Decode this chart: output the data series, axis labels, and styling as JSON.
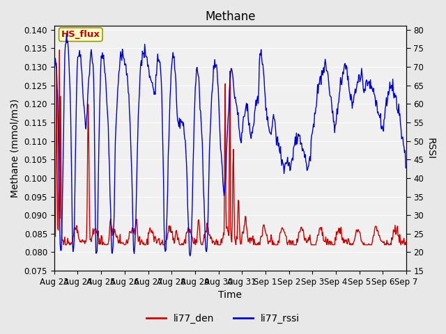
{
  "title": "Methane",
  "ylabel_left": "Methane (mmol/m3)",
  "ylabel_right": "RSSI",
  "xlabel": "Time",
  "ylim_left": [
    0.075,
    0.141
  ],
  "ylim_right": [
    15,
    81
  ],
  "yticks_left": [
    0.075,
    0.08,
    0.085,
    0.09,
    0.095,
    0.1,
    0.105,
    0.11,
    0.115,
    0.12,
    0.125,
    0.13,
    0.135,
    0.14
  ],
  "yticks_right": [
    15,
    20,
    25,
    30,
    35,
    40,
    45,
    50,
    55,
    60,
    65,
    70,
    75,
    80
  ],
  "xtick_labels": [
    "Aug 23",
    "Aug 24",
    "Aug 25",
    "Aug 26",
    "Aug 27",
    "Aug 28",
    "Aug 29",
    "Aug 30",
    "Aug 31",
    "Sep 1",
    "Sep 2",
    "Sep 3",
    "Sep 4",
    "Sep 5",
    "Sep 6",
    "Sep 7"
  ],
  "color_den": "#cc0000",
  "color_rssi": "#0000cc",
  "legend_label_den": "li77_den",
  "legend_label_rssi": "li77_rssi",
  "annotation_text": "HS_flux",
  "annotation_color": "#cc0000",
  "annotation_bg": "#ffffcc",
  "annotation_border": "#999900",
  "background_color": "#e8e8e8",
  "plot_bg_color": "#f0f0f0",
  "grid_color": "#ffffff",
  "title_fontsize": 12,
  "axis_fontsize": 10,
  "tick_fontsize": 8.5,
  "legend_fontsize": 10
}
